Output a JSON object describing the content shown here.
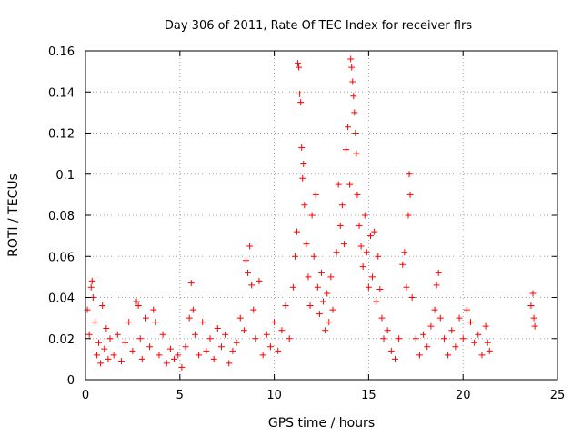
{
  "chart_data": {
    "type": "scatter",
    "title": "Day 306 of 2011, Rate Of TEC Index for receiver flrs",
    "xlabel": "GPS time / hours",
    "ylabel": "ROTI / TECUs",
    "xlim": [
      0,
      25
    ],
    "ylim": [
      0,
      0.16
    ],
    "xticks": [
      0,
      5,
      10,
      15,
      20,
      25
    ],
    "xtick_labels": [
      "0",
      "5",
      "10",
      "15",
      "20",
      "25"
    ],
    "yticks": [
      0,
      0.02,
      0.04,
      0.06,
      0.08,
      0.1,
      0.12,
      0.14,
      0.16
    ],
    "ytick_labels": [
      "0",
      "0.02",
      "0.04",
      "0.06",
      "0.08",
      "0.1",
      "0.12",
      "0.14",
      "0.16"
    ],
    "grid": true,
    "marker": "plus",
    "marker_color": "#ff0000",
    "series": [
      {
        "name": "ROTI",
        "points": [
          [
            0.1,
            0.034
          ],
          [
            0.2,
            0.022
          ],
          [
            0.3,
            0.045
          ],
          [
            0.35,
            0.048
          ],
          [
            0.4,
            0.04
          ],
          [
            0.5,
            0.028
          ],
          [
            0.6,
            0.012
          ],
          [
            0.7,
            0.018
          ],
          [
            0.8,
            0.008
          ],
          [
            0.9,
            0.036
          ],
          [
            1.0,
            0.015
          ],
          [
            1.1,
            0.025
          ],
          [
            1.2,
            0.01
          ],
          [
            1.3,
            0.02
          ],
          [
            1.5,
            0.012
          ],
          [
            1.7,
            0.022
          ],
          [
            1.9,
            0.009
          ],
          [
            2.1,
            0.018
          ],
          [
            2.3,
            0.028
          ],
          [
            2.5,
            0.014
          ],
          [
            2.7,
            0.038
          ],
          [
            2.8,
            0.036
          ],
          [
            2.9,
            0.02
          ],
          [
            3.0,
            0.01
          ],
          [
            3.2,
            0.03
          ],
          [
            3.4,
            0.016
          ],
          [
            3.6,
            0.034
          ],
          [
            3.7,
            0.028
          ],
          [
            3.9,
            0.012
          ],
          [
            4.1,
            0.022
          ],
          [
            4.3,
            0.008
          ],
          [
            4.5,
            0.015
          ],
          [
            4.7,
            0.01
          ],
          [
            4.9,
            0.012
          ],
          [
            5.1,
            0.006
          ],
          [
            5.3,
            0.016
          ],
          [
            5.5,
            0.03
          ],
          [
            5.6,
            0.047
          ],
          [
            5.7,
            0.034
          ],
          [
            5.8,
            0.022
          ],
          [
            6.0,
            0.012
          ],
          [
            6.2,
            0.028
          ],
          [
            6.4,
            0.014
          ],
          [
            6.6,
            0.02
          ],
          [
            6.8,
            0.01
          ],
          [
            7.0,
            0.025
          ],
          [
            7.2,
            0.016
          ],
          [
            7.4,
            0.022
          ],
          [
            7.6,
            0.008
          ],
          [
            7.8,
            0.014
          ],
          [
            8.0,
            0.018
          ],
          [
            8.2,
            0.03
          ],
          [
            8.4,
            0.024
          ],
          [
            8.5,
            0.058
          ],
          [
            8.6,
            0.052
          ],
          [
            8.7,
            0.065
          ],
          [
            8.8,
            0.046
          ],
          [
            8.9,
            0.034
          ],
          [
            9.0,
            0.02
          ],
          [
            9.2,
            0.048
          ],
          [
            9.4,
            0.012
          ],
          [
            9.6,
            0.022
          ],
          [
            9.8,
            0.016
          ],
          [
            10.0,
            0.028
          ],
          [
            10.2,
            0.014
          ],
          [
            10.4,
            0.024
          ],
          [
            10.6,
            0.036
          ],
          [
            10.8,
            0.02
          ],
          [
            11.0,
            0.045
          ],
          [
            11.1,
            0.06
          ],
          [
            11.2,
            0.072
          ],
          [
            11.25,
            0.154
          ],
          [
            11.3,
            0.152
          ],
          [
            11.35,
            0.139
          ],
          [
            11.4,
            0.135
          ],
          [
            11.45,
            0.113
          ],
          [
            11.5,
            0.098
          ],
          [
            11.55,
            0.105
          ],
          [
            11.6,
            0.085
          ],
          [
            11.7,
            0.066
          ],
          [
            11.8,
            0.05
          ],
          [
            11.9,
            0.036
          ],
          [
            12.0,
            0.08
          ],
          [
            12.1,
            0.06
          ],
          [
            12.2,
            0.09
          ],
          [
            12.3,
            0.045
          ],
          [
            12.4,
            0.032
          ],
          [
            12.5,
            0.052
          ],
          [
            12.6,
            0.038
          ],
          [
            12.7,
            0.024
          ],
          [
            12.8,
            0.042
          ],
          [
            12.9,
            0.028
          ],
          [
            13.0,
            0.05
          ],
          [
            13.1,
            0.034
          ],
          [
            13.3,
            0.062
          ],
          [
            13.4,
            0.095
          ],
          [
            13.5,
            0.075
          ],
          [
            13.6,
            0.085
          ],
          [
            13.7,
            0.066
          ],
          [
            13.8,
            0.112
          ],
          [
            13.9,
            0.123
          ],
          [
            14.0,
            0.095
          ],
          [
            14.05,
            0.156
          ],
          [
            14.1,
            0.152
          ],
          [
            14.15,
            0.145
          ],
          [
            14.2,
            0.138
          ],
          [
            14.25,
            0.13
          ],
          [
            14.3,
            0.12
          ],
          [
            14.35,
            0.11
          ],
          [
            14.4,
            0.09
          ],
          [
            14.5,
            0.075
          ],
          [
            14.6,
            0.065
          ],
          [
            14.7,
            0.055
          ],
          [
            14.8,
            0.08
          ],
          [
            14.9,
            0.062
          ],
          [
            15.0,
            0.045
          ],
          [
            15.1,
            0.07
          ],
          [
            15.2,
            0.05
          ],
          [
            15.3,
            0.072
          ],
          [
            15.4,
            0.038
          ],
          [
            15.5,
            0.06
          ],
          [
            15.6,
            0.044
          ],
          [
            15.7,
            0.03
          ],
          [
            15.8,
            0.02
          ],
          [
            16.0,
            0.024
          ],
          [
            16.2,
            0.014
          ],
          [
            16.4,
            0.01
          ],
          [
            16.6,
            0.02
          ],
          [
            16.8,
            0.056
          ],
          [
            16.9,
            0.062
          ],
          [
            17.0,
            0.045
          ],
          [
            17.1,
            0.08
          ],
          [
            17.15,
            0.1
          ],
          [
            17.2,
            0.09
          ],
          [
            17.3,
            0.04
          ],
          [
            17.5,
            0.02
          ],
          [
            17.7,
            0.012
          ],
          [
            17.9,
            0.022
          ],
          [
            18.1,
            0.016
          ],
          [
            18.3,
            0.026
          ],
          [
            18.5,
            0.034
          ],
          [
            18.6,
            0.046
          ],
          [
            18.7,
            0.052
          ],
          [
            18.8,
            0.03
          ],
          [
            19.0,
            0.02
          ],
          [
            19.2,
            0.012
          ],
          [
            19.4,
            0.024
          ],
          [
            19.6,
            0.016
          ],
          [
            19.8,
            0.03
          ],
          [
            20.0,
            0.02
          ],
          [
            20.2,
            0.034
          ],
          [
            20.4,
            0.028
          ],
          [
            20.6,
            0.018
          ],
          [
            20.8,
            0.022
          ],
          [
            21.0,
            0.012
          ],
          [
            21.2,
            0.026
          ],
          [
            21.3,
            0.018
          ],
          [
            21.4,
            0.014
          ],
          [
            23.6,
            0.036
          ],
          [
            23.7,
            0.042
          ],
          [
            23.75,
            0.03
          ],
          [
            23.8,
            0.026
          ]
        ]
      }
    ]
  }
}
